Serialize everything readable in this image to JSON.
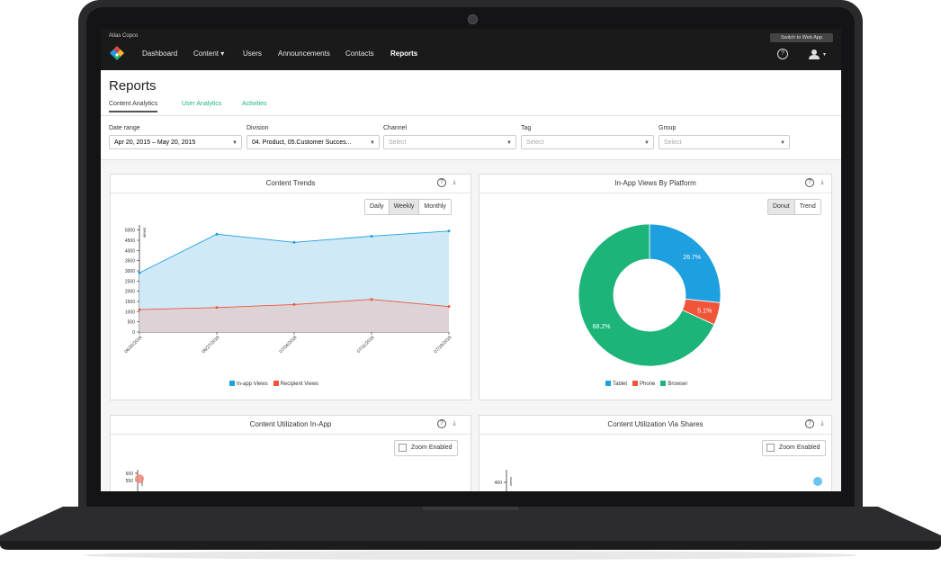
{
  "app": {
    "org": "Atlas Copco",
    "switch_label": "Switch to Web App",
    "nav": [
      "Dashboard",
      "Content",
      "Users",
      "Announcements",
      "Contacts",
      "Reports"
    ],
    "help_glyph": "?",
    "icons": {
      "help": "help-icon",
      "user": "user-icon",
      "caret": "caret-down-icon"
    }
  },
  "page": {
    "title": "Reports",
    "tabs": [
      "Content Analytics",
      "User Analytics",
      "Activities"
    ]
  },
  "filters": {
    "date_range": {
      "label": "Date range",
      "value": "Apr 20, 2015 – May 20, 2015"
    },
    "division": {
      "label": "Division",
      "value": "04. Product, 05.Customer Succes..."
    },
    "channel": {
      "label": "Channel",
      "placeholder": "Select"
    },
    "tag": {
      "label": "Tag",
      "placeholder": "Select"
    },
    "group": {
      "label": "Group",
      "placeholder": "Select"
    }
  },
  "panels": {
    "trends": {
      "title": "Content Trends",
      "buttons": [
        "Daily",
        "Weekly",
        "Monthly"
      ],
      "selected": "Weekly"
    },
    "platform": {
      "title": "In-App Views By Platform",
      "buttons": [
        "Donut",
        "Trend"
      ],
      "selected": "Donut"
    },
    "util_inapp": {
      "title": "Content Utilization In-App",
      "zoom": "Zoom Enabled",
      "ticks": [
        "600",
        "550"
      ],
      "ylabel": "views"
    },
    "util_shares": {
      "title": "Content Utilization Via Shares",
      "zoom": "Zoom Enabled",
      "ticks": [
        "400"
      ],
      "ylabel": "views"
    }
  },
  "colors": {
    "inapp": "#1e9fe0",
    "recipient": "#f0553a",
    "browser": "#1db47a",
    "accent": "#1db47a"
  },
  "chart_data": [
    {
      "type": "area",
      "title": "Content Trends",
      "ylabel": "views",
      "x": [
        "06/20/2016",
        "06/27/2016",
        "07/04/2016",
        "07/11/2016",
        "07/18/2016"
      ],
      "y_ticks": [
        0,
        500,
        1000,
        1500,
        2000,
        2500,
        3000,
        3500,
        4000,
        4500,
        5000
      ],
      "ylim": [
        0,
        5000
      ],
      "series": [
        {
          "name": "In-app Views",
          "values": [
            2900,
            4800,
            4400,
            4700,
            4950
          ]
        },
        {
          "name": "Recipient Views",
          "values": [
            1100,
            1200,
            1350,
            1600,
            1250
          ]
        }
      ],
      "legend_position": "bottom"
    },
    {
      "type": "pie",
      "title": "In-App Views By Platform",
      "slices": [
        {
          "name": "Tablet",
          "value": 26.7,
          "label": "26.7%"
        },
        {
          "name": "Phone",
          "value": 5.1,
          "label": "5.1%"
        },
        {
          "name": "Browser",
          "value": 68.2,
          "label": "68.2%"
        }
      ],
      "legend_position": "bottom"
    }
  ]
}
